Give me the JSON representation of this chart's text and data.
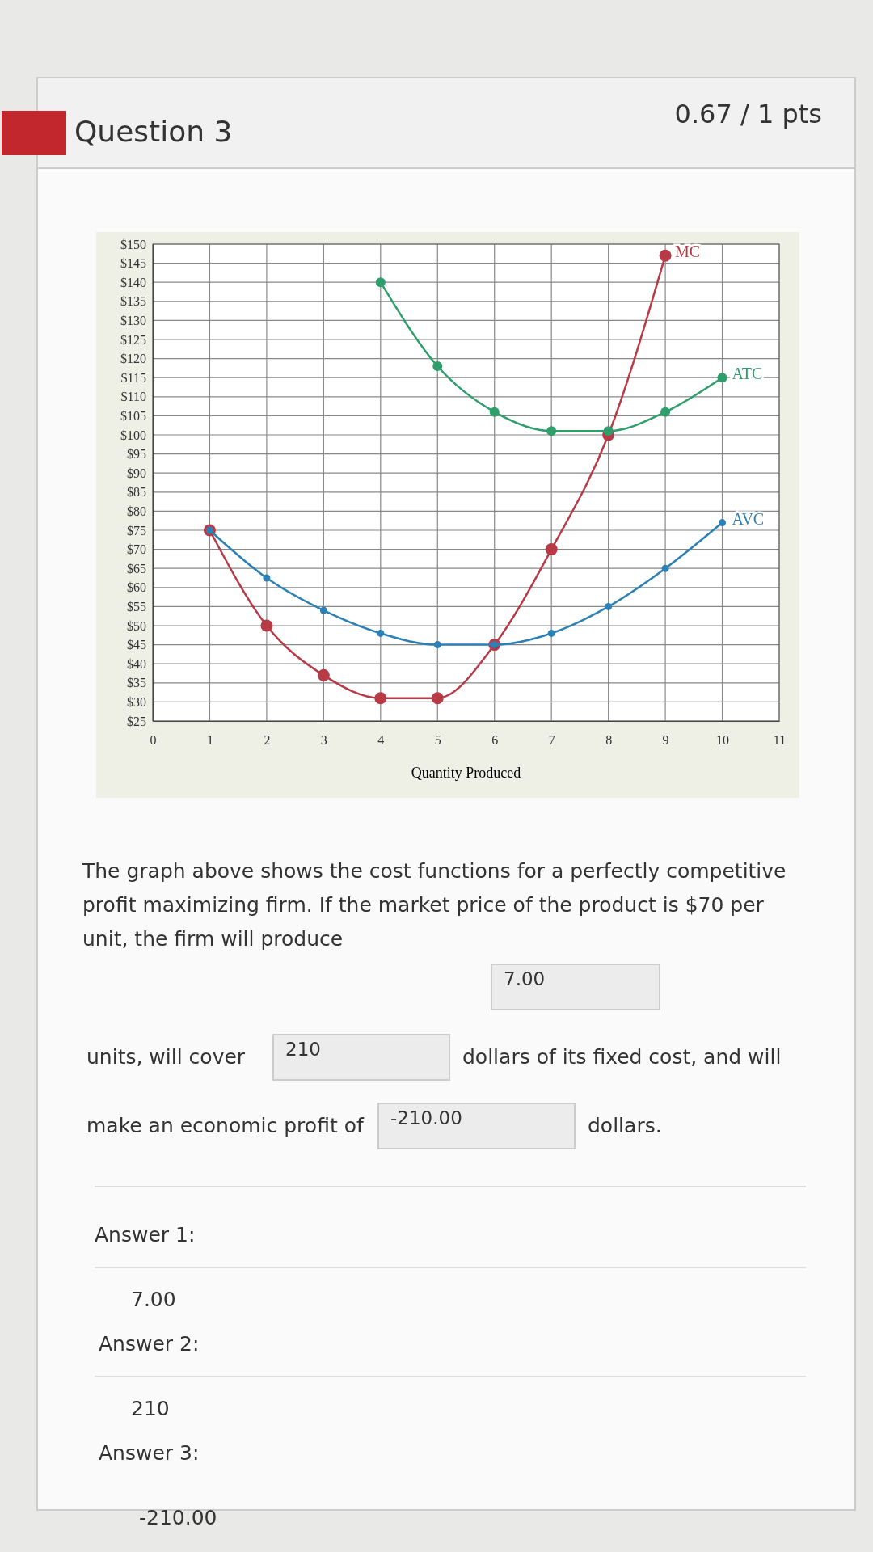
{
  "chart_data": {
    "type": "line",
    "title": "Question 3",
    "subtitle": "0.67 / 1 pts",
    "xlabel": "Quantity Produced",
    "xlim": [
      0,
      11
    ],
    "xticks": [
      0,
      1,
      2,
      3,
      4,
      5,
      6,
      7,
      8,
      9,
      10,
      11
    ],
    "ylim": [
      25,
      150
    ],
    "yticks": [
      {
        "value": 25,
        "label": "$25"
      },
      {
        "value": 30,
        "label": "$30"
      },
      {
        "value": 35,
        "label": "$35"
      },
      {
        "value": 40,
        "label": "$40"
      },
      {
        "value": 45,
        "label": "$45"
      },
      {
        "value": 50,
        "label": "$50"
      },
      {
        "value": 55,
        "label": "$55"
      },
      {
        "value": 60,
        "label": "$60"
      },
      {
        "value": 65,
        "label": "$65"
      },
      {
        "value": 70,
        "label": "$70"
      },
      {
        "value": 75,
        "label": "$75"
      },
      {
        "value": 80,
        "label": "$80"
      },
      {
        "value": 85,
        "label": "$85"
      },
      {
        "value": 90,
        "label": "$90"
      },
      {
        "value": 95,
        "label": "$95"
      },
      {
        "value": 100,
        "label": "$100"
      },
      {
        "value": 105,
        "label": "$105"
      },
      {
        "value": 110,
        "label": "$110"
      },
      {
        "value": 115,
        "label": "$115"
      },
      {
        "value": 120,
        "label": "$120"
      },
      {
        "value": 125,
        "label": "$125"
      },
      {
        "value": 130,
        "label": "$130"
      },
      {
        "value": 135,
        "label": "$135"
      },
      {
        "value": 140,
        "label": "$140"
      },
      {
        "value": 145,
        "label": "$145"
      },
      {
        "value": 150,
        "label": "$150"
      }
    ],
    "grid": true,
    "marker": "circle",
    "line_style": "solid",
    "series": [
      {
        "name": "MC",
        "color": "#b83a46",
        "x": [
          1,
          2,
          3,
          4,
          5,
          6,
          7,
          8,
          9
        ],
        "values": [
          75,
          50,
          37,
          31,
          31,
          45,
          70,
          100,
          147
        ]
      },
      {
        "name": "ATC",
        "color": "#2e9e6a",
        "x": [
          4,
          5,
          6,
          7,
          8,
          9,
          10
        ],
        "values": [
          140,
          118,
          106,
          101,
          101,
          106,
          115
        ]
      },
      {
        "name": "AVC",
        "color": "#2d80b5",
        "x": [
          1,
          2,
          3,
          4,
          5,
          6,
          7,
          8,
          9,
          10
        ],
        "values": [
          75,
          62.5,
          54,
          48,
          45,
          45,
          48,
          55,
          65,
          77
        ]
      }
    ],
    "annotations": [
      "The graph above shows the cost functions for a perfectly competitive profit maximizing firm. If the market price of the product is $70 per unit, the firm will produce",
      "7.00",
      "units, will cover",
      "210",
      "dollars of its fixed cost, and will",
      "make an economic profit of",
      "-210.00",
      "dollars.",
      "Answer 1:",
      "7.00",
      "Answer 2:",
      "210",
      "Answer 3:",
      "-210.00"
    ]
  }
}
